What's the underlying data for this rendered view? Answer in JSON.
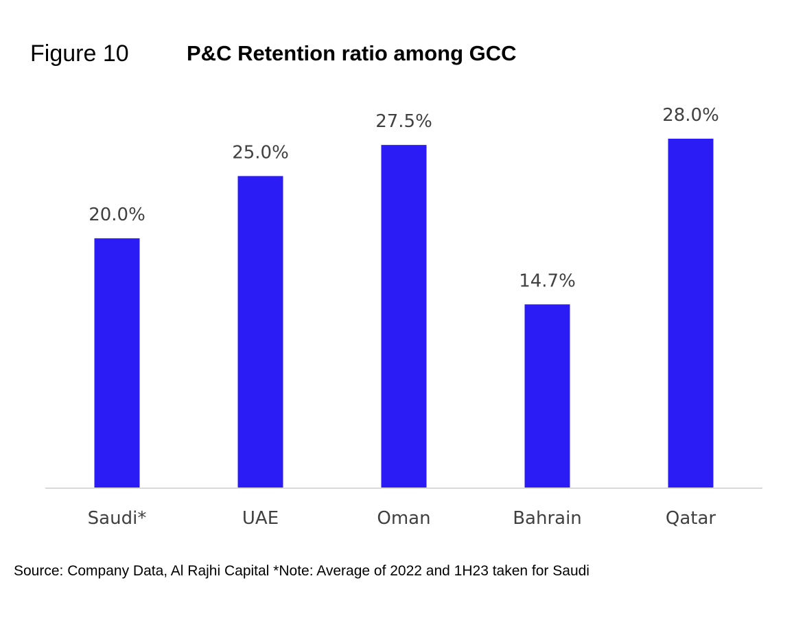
{
  "figure": {
    "label": "Figure 10",
    "title": "P&C Retention ratio among GCC"
  },
  "source_note": "Source: Company Data, Al Rajhi Capital *Note: Average of 2022 and 1H23 taken for Saudi",
  "colors": {
    "bar": "#2B1CF5",
    "axis": "#D9D9D9",
    "label": "#404040"
  },
  "chart_data": {
    "type": "bar",
    "title": "P&C Retention ratio among GCC",
    "categories": [
      "Saudi*",
      "UAE",
      "Oman",
      "Bahrain",
      "Qatar"
    ],
    "values": [
      20.0,
      25.0,
      27.5,
      14.7,
      28.0
    ],
    "value_labels": [
      "20.0%",
      "25.0%",
      "27.5%",
      "14.7%",
      "28.0%"
    ],
    "unit": "%",
    "xlabel": "",
    "ylabel": "",
    "ylim": [
      0,
      28.0
    ],
    "grid": false,
    "legend": "none"
  }
}
